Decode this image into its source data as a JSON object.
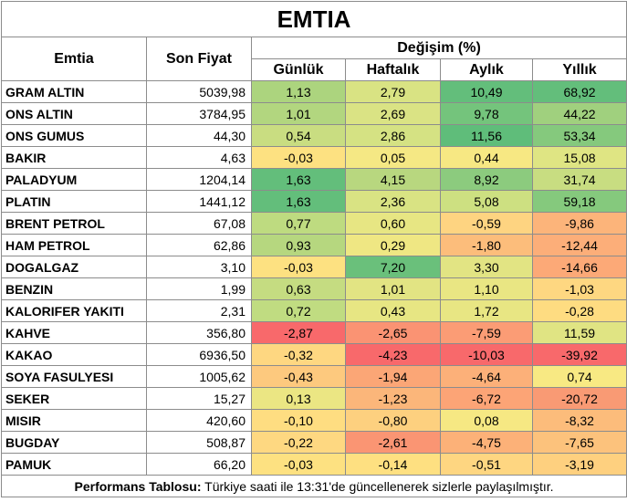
{
  "title": "EMTIA",
  "headers": {
    "emtia": "Emtia",
    "son_fiyat": "Son Fiyat",
    "degisim": "Değişim (%)",
    "gunluk": "Günlük",
    "haftalik": "Haftalık",
    "aylik": "Aylık",
    "yillik": "Yıllık"
  },
  "rows": [
    {
      "name": "GRAM ALTIN",
      "price": "5039,98",
      "d": "1,13",
      "w": "2,79",
      "m": "10,49",
      "y": "68,92"
    },
    {
      "name": "ONS ALTIN",
      "price": "3784,95",
      "d": "1,01",
      "w": "2,69",
      "m": "9,78",
      "y": "44,22"
    },
    {
      "name": "ONS GUMUS",
      "price": "44,30",
      "d": "0,54",
      "w": "2,86",
      "m": "11,56",
      "y": "53,34"
    },
    {
      "name": "BAKIR",
      "price": "4,63",
      "d": "-0,03",
      "w": "0,05",
      "m": "0,44",
      "y": "15,08"
    },
    {
      "name": "PALADYUM",
      "price": "1204,14",
      "d": "1,63",
      "w": "4,15",
      "m": "8,92",
      "y": "31,74"
    },
    {
      "name": "PLATIN",
      "price": "1441,12",
      "d": "1,63",
      "w": "2,36",
      "m": "5,08",
      "y": "59,18"
    },
    {
      "name": "BRENT PETROL",
      "price": "67,08",
      "d": "0,77",
      "w": "0,60",
      "m": "-0,59",
      "y": "-9,86"
    },
    {
      "name": "HAM PETROL",
      "price": "62,86",
      "d": "0,93",
      "w": "0,29",
      "m": "-1,80",
      "y": "-12,44"
    },
    {
      "name": "DOGALGAZ",
      "price": "3,10",
      "d": "-0,03",
      "w": "7,20",
      "m": "3,30",
      "y": "-14,66"
    },
    {
      "name": "BENZIN",
      "price": "1,99",
      "d": "0,63",
      "w": "1,01",
      "m": "1,10",
      "y": "-1,03"
    },
    {
      "name": "KALORIFER YAKITI",
      "price": "2,31",
      "d": "0,72",
      "w": "0,43",
      "m": "1,72",
      "y": "-0,28"
    },
    {
      "name": "KAHVE",
      "price": "356,80",
      "d": "-2,87",
      "w": "-2,65",
      "m": "-7,59",
      "y": "11,59"
    },
    {
      "name": "KAKAO",
      "price": "6936,50",
      "d": "-0,32",
      "w": "-4,23",
      "m": "-10,03",
      "y": "-39,92"
    },
    {
      "name": "SOYA FASULYESI",
      "price": "1005,62",
      "d": "-0,43",
      "w": "-1,94",
      "m": "-4,64",
      "y": "0,74"
    },
    {
      "name": "SEKER",
      "price": "15,27",
      "d": "0,13",
      "w": "-1,23",
      "m": "-6,72",
      "y": "-20,72"
    },
    {
      "name": "MISIR",
      "price": "420,60",
      "d": "-0,10",
      "w": "-0,80",
      "m": "0,08",
      "y": "-8,32"
    },
    {
      "name": "BUGDAY",
      "price": "508,87",
      "d": "-0,22",
      "w": "-2,61",
      "m": "-4,75",
      "y": "-7,65"
    },
    {
      "name": "PAMUK",
      "price": "66,20",
      "d": "-0,03",
      "w": "-0,14",
      "m": "-0,51",
      "y": "-3,19"
    }
  ],
  "colors": {
    "rows": [
      [
        "#acd47e",
        "#d9e383",
        "#63be7b",
        "#63be7b"
      ],
      [
        "#b2d67f",
        "#dae384",
        "#74c47c",
        "#a0d07e"
      ],
      [
        "#c9dd81",
        "#d5e283",
        "#5fbd7a",
        "#85c97d"
      ],
      [
        "#fde181",
        "#f5e884",
        "#f7e883",
        "#dfe583"
      ],
      [
        "#63be7b",
        "#b8d77f",
        "#8ccb7e",
        "#c8dd81"
      ],
      [
        "#63be7b",
        "#d9e383",
        "#cde081",
        "#85c97d"
      ],
      [
        "#bedb80",
        "#e7e683",
        "#fed481",
        "#fcb47a"
      ],
      [
        "#b6d77f",
        "#efe783",
        "#fcbd7b",
        "#fcae79"
      ],
      [
        "#fde181",
        "#6ac07b",
        "#e2e483",
        "#fca977"
      ],
      [
        "#c5dc81",
        "#e2e483",
        "#e9e683",
        "#fed781"
      ],
      [
        "#c0dc81",
        "#e7e683",
        "#e8e683",
        "#fedc81"
      ],
      [
        "#f8696b",
        "#fa9373",
        "#fb9c75",
        "#e0e483"
      ],
      [
        "#fed781",
        "#f8696b",
        "#f8696b",
        "#f8696b"
      ],
      [
        "#fdc97e",
        "#fba676",
        "#fcb079",
        "#f8e983"
      ],
      [
        "#ebe683",
        "#fbb67a",
        "#fca476",
        "#f99a74"
      ],
      [
        "#fedd81",
        "#fdd07f",
        "#f6e883",
        "#fcbc7b"
      ],
      [
        "#fed881",
        "#fa9573",
        "#fcb178",
        "#fcc27c"
      ],
      [
        "#fde181",
        "#fee081",
        "#fed681",
        "#fed07f"
      ]
    ]
  },
  "footer": {
    "label": "Performans Tablosu:",
    "text": " Türkiye saati ile 13:31'de güncellenerek sizlerle paylaşılmıştır."
  }
}
